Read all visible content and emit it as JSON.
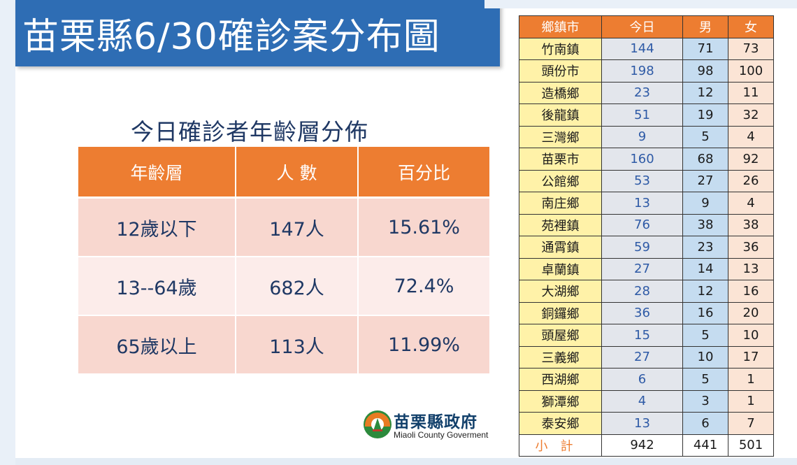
{
  "title": "苗栗縣6/30確診案分布圖",
  "age_section": {
    "heading": "今日確診者年齡層分佈",
    "headers": [
      "年齡層",
      "人 數",
      "百分比"
    ],
    "rows": [
      {
        "group": "12歲以下",
        "count": "147人",
        "percent": "15.61%"
      },
      {
        "group": "13--64歲",
        "count": "682人",
        "percent": "72.4%"
      },
      {
        "group": "65歲以上",
        "count": "113人",
        "percent": "11.99%"
      }
    ]
  },
  "town_table": {
    "headers": [
      "鄉鎮市",
      "今日",
      "男",
      "女"
    ],
    "rows": [
      {
        "name": "竹南鎮",
        "today": "144",
        "male": "71",
        "female": "73"
      },
      {
        "name": "頭份市",
        "today": "198",
        "male": "98",
        "female": "100"
      },
      {
        "name": "造橋鄉",
        "today": "23",
        "male": "12",
        "female": "11"
      },
      {
        "name": "後龍鎮",
        "today": "51",
        "male": "19",
        "female": "32"
      },
      {
        "name": "三灣鄉",
        "today": "9",
        "male": "5",
        "female": "4"
      },
      {
        "name": "苗栗市",
        "today": "160",
        "male": "68",
        "female": "92"
      },
      {
        "name": "公館鄉",
        "today": "53",
        "male": "27",
        "female": "26"
      },
      {
        "name": "南庄鄉",
        "today": "13",
        "male": "9",
        "female": "4"
      },
      {
        "name": "苑裡鎮",
        "today": "76",
        "male": "38",
        "female": "38"
      },
      {
        "name": "通霄鎮",
        "today": "59",
        "male": "23",
        "female": "36"
      },
      {
        "name": "卓蘭鎮",
        "today": "27",
        "male": "14",
        "female": "13"
      },
      {
        "name": "大湖鄉",
        "today": "28",
        "male": "12",
        "female": "16"
      },
      {
        "name": "銅鑼鄉",
        "today": "36",
        "male": "16",
        "female": "20"
      },
      {
        "name": "頭屋鄉",
        "today": "15",
        "male": "5",
        "female": "10"
      },
      {
        "name": "三義鄉",
        "today": "27",
        "male": "10",
        "female": "17"
      },
      {
        "name": "西湖鄉",
        "today": "6",
        "male": "5",
        "female": "1"
      },
      {
        "name": "獅潭鄉",
        "today": "4",
        "male": "3",
        "female": "1"
      },
      {
        "name": "泰安鄉",
        "today": "13",
        "male": "6",
        "female": "7"
      }
    ],
    "total": {
      "name": "小計",
      "today": "942",
      "male": "441",
      "female": "501"
    }
  },
  "logo": {
    "name": "苗栗縣政府",
    "subtitle": "Miaoli County Goverment"
  },
  "colors": {
    "title_bar": "#2e6db4",
    "header_orange": "#ed7d31",
    "text_navy": "#1f3864"
  }
}
